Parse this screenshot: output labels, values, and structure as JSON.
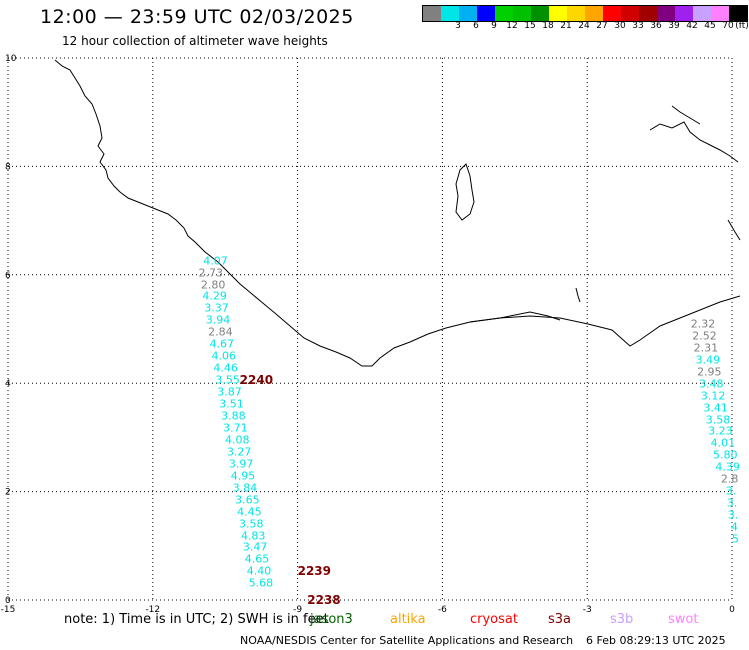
{
  "header": {
    "title": "12:00 — 23:59 UTC 02/03/2025",
    "subtitle": "12 hour collection of altimeter wave heights"
  },
  "color_scale": {
    "unit": "(ft)",
    "bins": [
      {
        "label": "",
        "color": "#808080"
      },
      {
        "label": "3",
        "color": "#00e5e5"
      },
      {
        "label": "6",
        "color": "#00b0f0"
      },
      {
        "label": "9",
        "color": "#0000ff"
      },
      {
        "label": "12",
        "color": "#00d000"
      },
      {
        "label": "15",
        "color": "#00c000"
      },
      {
        "label": "18",
        "color": "#009000"
      },
      {
        "label": "21",
        "color": "#ffff00"
      },
      {
        "label": "24",
        "color": "#ffd700"
      },
      {
        "label": "27",
        "color": "#ffa500"
      },
      {
        "label": "30",
        "color": "#ff0000"
      },
      {
        "label": "33",
        "color": "#d00000"
      },
      {
        "label": "36",
        "color": "#a00000"
      },
      {
        "label": "39",
        "color": "#800080"
      },
      {
        "label": "42",
        "color": "#a020f0"
      },
      {
        "label": "45",
        "color": "#c8a0ff"
      },
      {
        "label": "70",
        "color": "#ff80ff"
      },
      {
        "label": "",
        "color": "#000000"
      }
    ]
  },
  "map": {
    "lon_range": [
      -15,
      0
    ],
    "lat_range": [
      0,
      10
    ],
    "x_ticks": [
      "-15",
      "-12",
      "-9",
      "-6",
      "-3",
      "0"
    ],
    "y_ticks": [
      "0",
      "2",
      "4",
      "6",
      "8",
      "10"
    ],
    "track_west": {
      "color": "#00e5e5",
      "gray_color": "#808080",
      "points": [
        {
          "v": "4.07",
          "lon": -10.7,
          "lat": 6.25,
          "gray": false
        },
        {
          "v": "2.73",
          "lon": -10.8,
          "lat": 6.03,
          "gray": true
        },
        {
          "v": "2.80",
          "lon": -10.75,
          "lat": 5.82,
          "gray": true
        },
        {
          "v": "4.29",
          "lon": -10.72,
          "lat": 5.6,
          "gray": false
        },
        {
          "v": "3.37",
          "lon": -10.68,
          "lat": 5.38,
          "gray": false
        },
        {
          "v": "3.94",
          "lon": -10.65,
          "lat": 5.16,
          "gray": false
        },
        {
          "v": "2.84",
          "lon": -10.6,
          "lat": 4.94,
          "gray": true
        },
        {
          "v": "4.67",
          "lon": -10.57,
          "lat": 4.72,
          "gray": false
        },
        {
          "v": "4.06",
          "lon": -10.53,
          "lat": 4.5,
          "gray": false
        },
        {
          "v": "4.46",
          "lon": -10.49,
          "lat": 4.28,
          "gray": false
        },
        {
          "v": "3.55",
          "lon": -10.45,
          "lat": 4.05,
          "gray": false
        },
        {
          "v": "3.87",
          "lon": -10.41,
          "lat": 3.83,
          "gray": false
        },
        {
          "v": "3.51",
          "lon": -10.37,
          "lat": 3.61,
          "gray": false
        },
        {
          "v": "3.88",
          "lon": -10.33,
          "lat": 3.39,
          "gray": false
        },
        {
          "v": "3.71",
          "lon": -10.29,
          "lat": 3.17,
          "gray": false
        },
        {
          "v": "4.08",
          "lon": -10.25,
          "lat": 2.95,
          "gray": false
        },
        {
          "v": "3.27",
          "lon": -10.21,
          "lat": 2.73,
          "gray": false
        },
        {
          "v": "3.97",
          "lon": -10.17,
          "lat": 2.51,
          "gray": false
        },
        {
          "v": "4.95",
          "lon": -10.13,
          "lat": 2.29,
          "gray": false
        },
        {
          "v": "3.84",
          "lon": -10.09,
          "lat": 2.07,
          "gray": false
        },
        {
          "v": "3.65",
          "lon": -10.04,
          "lat": 1.85,
          "gray": false
        },
        {
          "v": "4.45",
          "lon": -10.0,
          "lat": 1.63,
          "gray": false
        },
        {
          "v": "3.58",
          "lon": -9.96,
          "lat": 1.41,
          "gray": false
        },
        {
          "v": "4.83",
          "lon": -9.92,
          "lat": 1.19,
          "gray": false
        },
        {
          "v": "3.47",
          "lon": -9.88,
          "lat": 0.97,
          "gray": false
        },
        {
          "v": "4.65",
          "lon": -9.84,
          "lat": 0.75,
          "gray": false
        },
        {
          "v": "4.40",
          "lon": -9.8,
          "lat": 0.53,
          "gray": false
        },
        {
          "v": "5.68",
          "lon": -9.76,
          "lat": 0.31,
          "gray": false
        }
      ]
    },
    "track_east": {
      "points": [
        {
          "v": "2.32",
          "lon": -0.6,
          "lat": 5.09,
          "gray": true
        },
        {
          "v": "2.52",
          "lon": -0.57,
          "lat": 4.87,
          "gray": true
        },
        {
          "v": "2.31",
          "lon": -0.54,
          "lat": 4.65,
          "gray": true
        },
        {
          "v": "3.49",
          "lon": -0.5,
          "lat": 4.43,
          "gray": false
        },
        {
          "v": "2.95",
          "lon": -0.47,
          "lat": 4.21,
          "gray": true
        },
        {
          "v": "3.48",
          "lon": -0.43,
          "lat": 3.99,
          "gray": false
        },
        {
          "v": "3.12",
          "lon": -0.39,
          "lat": 3.77,
          "gray": false
        },
        {
          "v": "3.41",
          "lon": -0.34,
          "lat": 3.55,
          "gray": false
        },
        {
          "v": "3.58",
          "lon": -0.29,
          "lat": 3.33,
          "gray": false
        },
        {
          "v": "3.23",
          "lon": -0.24,
          "lat": 3.11,
          "gray": false
        },
        {
          "v": "4.01",
          "lon": -0.19,
          "lat": 2.89,
          "gray": false
        },
        {
          "v": "5.80",
          "lon": -0.14,
          "lat": 2.67,
          "gray": false
        },
        {
          "v": "4.39",
          "lon": -0.09,
          "lat": 2.45,
          "gray": false
        },
        {
          "v": "2.8",
          "lon": -0.05,
          "lat": 2.23,
          "gray": true
        },
        {
          "v": "3.",
          "lon": -0.02,
          "lat": 2.01,
          "gray": false
        },
        {
          "v": "3.",
          "lon": 0.0,
          "lat": 1.79,
          "gray": false
        },
        {
          "v": "3.",
          "lon": 0.02,
          "lat": 1.57,
          "gray": false
        },
        {
          "v": "4",
          "lon": 0.05,
          "lat": 1.35,
          "gray": false
        },
        {
          "v": "5",
          "lon": 0.07,
          "lat": 1.13,
          "gray": false
        }
      ]
    },
    "pass_labels": [
      {
        "text": "2240",
        "lon": -10.2,
        "lat": 4.05
      },
      {
        "text": "2239",
        "lon": -9.0,
        "lat": 0.53
      },
      {
        "text": "2238",
        "lon": -8.8,
        "lat": 0.0
      }
    ]
  },
  "footer": {
    "note": "note:  1) Time is in UTC; 2) SWH is in feet",
    "legend": [
      {
        "label": "jason3",
        "color": "#006400"
      },
      {
        "label": "altika",
        "color": "#ffa500"
      },
      {
        "label": "cryosat",
        "color": "#ff0000"
      },
      {
        "label": "s3a",
        "color": "#800000"
      },
      {
        "label": "s3b",
        "color": "#c8a0ff"
      },
      {
        "label": "swot",
        "color": "#ff80ff"
      }
    ],
    "credit": "NOAA/NESDIS Center for Satellite Applications and Research",
    "timestamp": "6 Feb 08:29:13 UTC 2025"
  }
}
